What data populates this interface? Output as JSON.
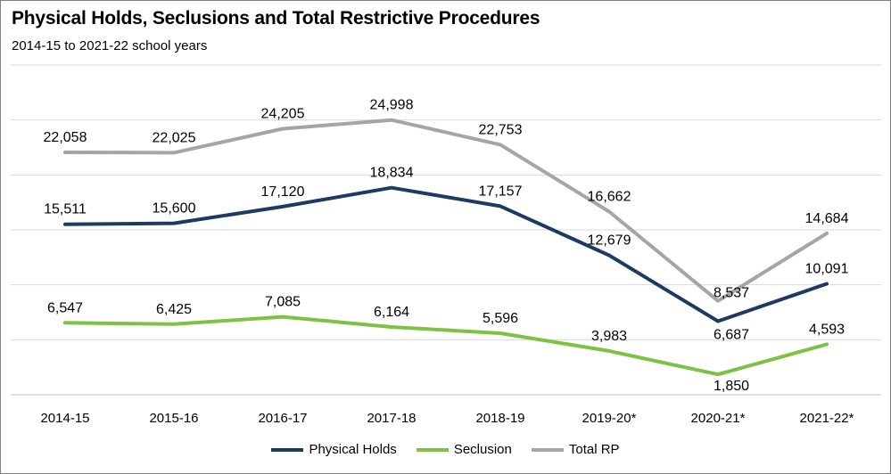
{
  "chart_data": {
    "type": "line",
    "title": "Physical Holds, Seclusions and Total Restrictive Procedures",
    "subtitle": "2014-15 to 2021-22 school years",
    "categories": [
      "2014-15",
      "2015-16",
      "2016-17",
      "2017-18",
      "2018-19",
      "2019-20*",
      "2020-21*",
      "2021-22*"
    ],
    "series": [
      {
        "name": "Physical Holds",
        "color": "#1f3a60",
        "values": [
          15511,
          15600,
          17120,
          18834,
          17157,
          12679,
          6687,
          10091
        ],
        "labels": [
          "15,511",
          "15,600",
          "17,120",
          "18,834",
          "17,157",
          "12,679",
          "6,687",
          "10,091"
        ]
      },
      {
        "name": "Seclusion",
        "color": "#7dc242",
        "values": [
          6547,
          6425,
          7085,
          6164,
          5596,
          3983,
          1850,
          4593
        ],
        "labels": [
          "6,547",
          "6,425",
          "7,085",
          "6,164",
          "5,596",
          "3,983",
          "1,850",
          "4,593"
        ]
      },
      {
        "name": "Total RP",
        "color": "#a5a5a5",
        "values": [
          22058,
          22025,
          24205,
          24998,
          22753,
          16662,
          8537,
          14684
        ],
        "labels": [
          "22,058",
          "22,025",
          "24,205",
          "24,998",
          "22,753",
          "16,662",
          "8,537",
          "14,684"
        ]
      }
    ],
    "ylim": [
      0,
      30000
    ],
    "grid": true,
    "legend": "bottom"
  }
}
